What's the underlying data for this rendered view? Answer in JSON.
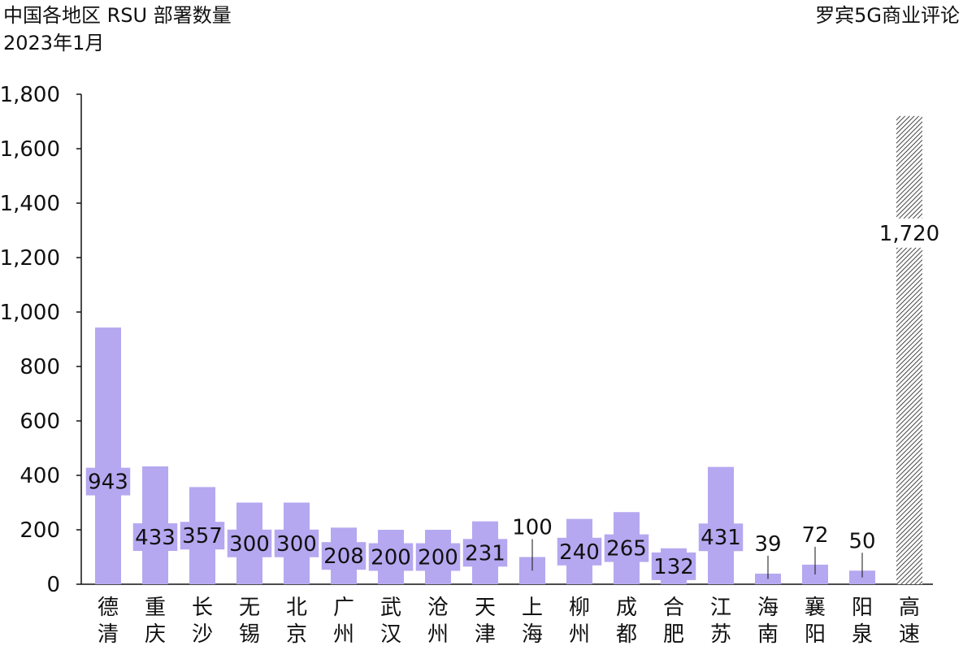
{
  "header": {
    "title": "中国各地区 RSU 部署数量",
    "subtitle": "2023年1月",
    "source": "罗宾5G商业评论"
  },
  "colors": {
    "bar": "#b5a8f0",
    "hatch": "#444444",
    "axis": "#111111"
  },
  "chart_data": {
    "type": "bar",
    "title": "中国各地区 RSU 部署数量",
    "subtitle": "2023年1月",
    "xlabel": "",
    "ylabel": "",
    "ylim": [
      0,
      1800
    ],
    "yticks": [
      "0",
      "200",
      "400",
      "600",
      "800",
      "1,000",
      "1,200",
      "1,400",
      "1,600",
      "1,800"
    ],
    "categories": [
      "德清",
      "重庆",
      "长沙",
      "无锡",
      "北京",
      "广州",
      "武汉",
      "沧州",
      "天津",
      "上海",
      "柳州",
      "成都",
      "合肥",
      "江苏",
      "海南",
      "襄阳",
      "阳泉",
      "高速"
    ],
    "values": [
      943,
      433,
      357,
      300,
      300,
      208,
      200,
      200,
      231,
      100,
      240,
      265,
      132,
      431,
      39,
      72,
      50,
      1720
    ],
    "labels": [
      "943",
      "433",
      "357",
      "300",
      "300",
      "208",
      "200",
      "200",
      "231",
      "100",
      "240",
      "265",
      "132",
      "431",
      "39",
      "72",
      "50",
      "1,720"
    ],
    "label_inside": [
      true,
      true,
      true,
      true,
      true,
      true,
      true,
      true,
      true,
      false,
      true,
      true,
      true,
      true,
      false,
      false,
      false,
      true
    ],
    "hatched": [
      false,
      false,
      false,
      false,
      false,
      false,
      false,
      false,
      false,
      false,
      false,
      false,
      false,
      false,
      false,
      false,
      false,
      true
    ],
    "grid": false,
    "legend": "none"
  }
}
